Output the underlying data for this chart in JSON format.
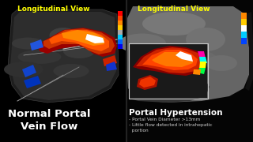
{
  "bg_color": "#000000",
  "left_label": "Longitudinal View",
  "right_label": "Longitudinal View",
  "left_title": "Normal Portal\nVein Flow",
  "right_title": "Portal Hypertension",
  "right_bullets": [
    "- Portal Vein Diameter >13mm",
    "- Little flow detected in intrahepatic",
    "  portion"
  ],
  "label_color": "#ffff00",
  "title_color": "#ffffff",
  "bullet_color": "#cccccc"
}
